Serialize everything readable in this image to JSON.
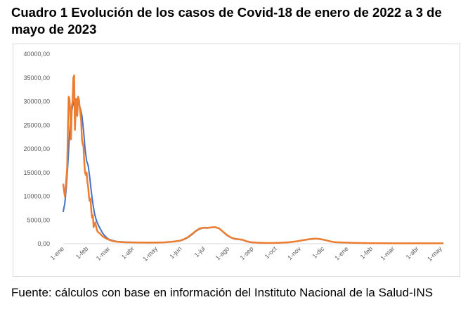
{
  "title": "Cuadro 1 Evolución de los casos de Covid-18 de enero de 2022 a 3 de  mayo de 2023",
  "footnote": "Fuente: cálculos con base en información del Instituto Nacional de la Salud-INS",
  "chart_data": {
    "type": "line",
    "title": "Cuadro 1 Evolución de los casos de Covid-18 de enero de 2022 a 3 de  mayo de 2023",
    "xlabel": "",
    "ylabel": "",
    "ylim": [
      0,
      40000
    ],
    "yticks": [
      "0,00",
      "5000,00",
      "10000,00",
      "15000,00",
      "20000,00",
      "25000,00",
      "30000,00",
      "35000,00",
      "40000,00"
    ],
    "xticks": [
      "1-ene",
      "1-feb",
      "1-mar",
      "1-abr",
      "1-may",
      "1-jun",
      "1-jul",
      "1-ago",
      "1-sep",
      "1-oct",
      "1-nov",
      "1-dic",
      "1-ene",
      "1-feb",
      "1-mar",
      "1-abr",
      "1-may"
    ],
    "grid": false,
    "legend": "none",
    "x_unit": "day (2022-01-01 = 0)",
    "series": [
      {
        "color": "#4472c4",
        "points": [
          [
            0,
            6800
          ],
          [
            2,
            8500
          ],
          [
            4,
            12000
          ],
          [
            6,
            17000
          ],
          [
            8,
            23000
          ],
          [
            10,
            27000
          ],
          [
            12,
            29000
          ],
          [
            14,
            30000
          ],
          [
            16,
            30500
          ],
          [
            18,
            30200
          ],
          [
            20,
            29500
          ],
          [
            22,
            28500
          ],
          [
            24,
            27000
          ],
          [
            26,
            24000
          ],
          [
            28,
            20000
          ],
          [
            30,
            17500
          ],
          [
            32,
            16500
          ],
          [
            34,
            14000
          ],
          [
            36,
            11000
          ],
          [
            38,
            8500
          ],
          [
            40,
            6500
          ],
          [
            42,
            5200
          ],
          [
            44,
            4300
          ],
          [
            46,
            3600
          ],
          [
            48,
            3000
          ],
          [
            50,
            2400
          ],
          [
            52,
            1900
          ],
          [
            55,
            1400
          ],
          [
            58,
            1000
          ],
          [
            61,
            800
          ],
          [
            65,
            600
          ],
          [
            70,
            450
          ],
          [
            80,
            350
          ],
          [
            90,
            300
          ],
          [
            100,
            280
          ],
          [
            110,
            260
          ],
          [
            120,
            280
          ],
          [
            130,
            300
          ],
          [
            140,
            400
          ],
          [
            150,
            600
          ],
          [
            155,
            900
          ],
          [
            160,
            1300
          ],
          [
            165,
            1900
          ],
          [
            170,
            2600
          ],
          [
            175,
            3100
          ],
          [
            180,
            3350
          ],
          [
            185,
            3300
          ],
          [
            190,
            3400
          ],
          [
            195,
            3500
          ],
          [
            200,
            3200
          ],
          [
            205,
            2500
          ],
          [
            210,
            1800
          ],
          [
            215,
            1300
          ],
          [
            220,
            1000
          ],
          [
            225,
            900
          ],
          [
            230,
            800
          ],
          [
            235,
            500
          ],
          [
            240,
            300
          ],
          [
            250,
            200
          ],
          [
            260,
            150
          ],
          [
            270,
            150
          ],
          [
            280,
            200
          ],
          [
            290,
            300
          ],
          [
            300,
            500
          ],
          [
            310,
            800
          ],
          [
            320,
            1000
          ],
          [
            325,
            1050
          ],
          [
            330,
            950
          ],
          [
            335,
            800
          ],
          [
            340,
            600
          ],
          [
            345,
            400
          ],
          [
            350,
            300
          ],
          [
            360,
            250
          ],
          [
            370,
            200
          ],
          [
            380,
            150
          ],
          [
            390,
            120
          ],
          [
            400,
            100
          ],
          [
            420,
            80
          ],
          [
            440,
            80
          ],
          [
            460,
            80
          ],
          [
            480,
            80
          ],
          [
            487,
            80
          ]
        ]
      },
      {
        "color": "#ed7d31",
        "points": [
          [
            0,
            12500
          ],
          [
            2,
            10000
          ],
          [
            3,
            11500
          ],
          [
            5,
            16000
          ],
          [
            6,
            24000
          ],
          [
            7,
            31000
          ],
          [
            8,
            30500
          ],
          [
            9,
            28000
          ],
          [
            10,
            22000
          ],
          [
            11,
            29000
          ],
          [
            12,
            30000
          ],
          [
            13,
            35000
          ],
          [
            14,
            35500
          ],
          [
            15,
            24000
          ],
          [
            16,
            28000
          ],
          [
            17,
            30500
          ],
          [
            18,
            27000
          ],
          [
            19,
            31000
          ],
          [
            20,
            30500
          ],
          [
            21,
            29000
          ],
          [
            22,
            27500
          ],
          [
            23,
            26000
          ],
          [
            24,
            22000
          ],
          [
            25,
            21000
          ],
          [
            26,
            20500
          ],
          [
            27,
            17000
          ],
          [
            28,
            15000
          ],
          [
            29,
            14500
          ],
          [
            30,
            15000
          ],
          [
            31,
            13000
          ],
          [
            32,
            12000
          ],
          [
            33,
            10000
          ],
          [
            34,
            9000
          ],
          [
            35,
            9500
          ],
          [
            36,
            7000
          ],
          [
            37,
            5500
          ],
          [
            38,
            6000
          ],
          [
            39,
            3500
          ],
          [
            40,
            4000
          ],
          [
            41,
            4500
          ],
          [
            42,
            3800
          ],
          [
            43,
            3000
          ],
          [
            44,
            2600
          ],
          [
            45,
            2400
          ],
          [
            47,
            2200
          ],
          [
            49,
            1800
          ],
          [
            51,
            1500
          ],
          [
            53,
            1300
          ],
          [
            55,
            1100
          ],
          [
            58,
            900
          ],
          [
            61,
            700
          ],
          [
            65,
            500
          ],
          [
            70,
            400
          ],
          [
            80,
            300
          ],
          [
            90,
            280
          ],
          [
            100,
            250
          ],
          [
            110,
            240
          ],
          [
            120,
            260
          ],
          [
            130,
            300
          ],
          [
            140,
            420
          ],
          [
            150,
            650
          ],
          [
            155,
            950
          ],
          [
            160,
            1400
          ],
          [
            165,
            2000
          ],
          [
            170,
            2700
          ],
          [
            175,
            3200
          ],
          [
            180,
            3400
          ],
          [
            185,
            3350
          ],
          [
            190,
            3450
          ],
          [
            195,
            3500
          ],
          [
            200,
            3250
          ],
          [
            205,
            2550
          ],
          [
            210,
            1850
          ],
          [
            215,
            1350
          ],
          [
            220,
            1050
          ],
          [
            225,
            950
          ],
          [
            230,
            850
          ],
          [
            235,
            550
          ],
          [
            240,
            330
          ],
          [
            250,
            220
          ],
          [
            260,
            160
          ],
          [
            270,
            160
          ],
          [
            280,
            220
          ],
          [
            290,
            320
          ],
          [
            300,
            520
          ],
          [
            310,
            820
          ],
          [
            320,
            1050
          ],
          [
            325,
            1080
          ],
          [
            330,
            980
          ],
          [
            335,
            820
          ],
          [
            340,
            620
          ],
          [
            345,
            420
          ],
          [
            350,
            320
          ],
          [
            360,
            260
          ],
          [
            370,
            210
          ],
          [
            380,
            160
          ],
          [
            390,
            130
          ],
          [
            400,
            110
          ],
          [
            420,
            90
          ],
          [
            440,
            90
          ],
          [
            460,
            90
          ],
          [
            480,
            90
          ],
          [
            487,
            90
          ]
        ]
      }
    ]
  }
}
